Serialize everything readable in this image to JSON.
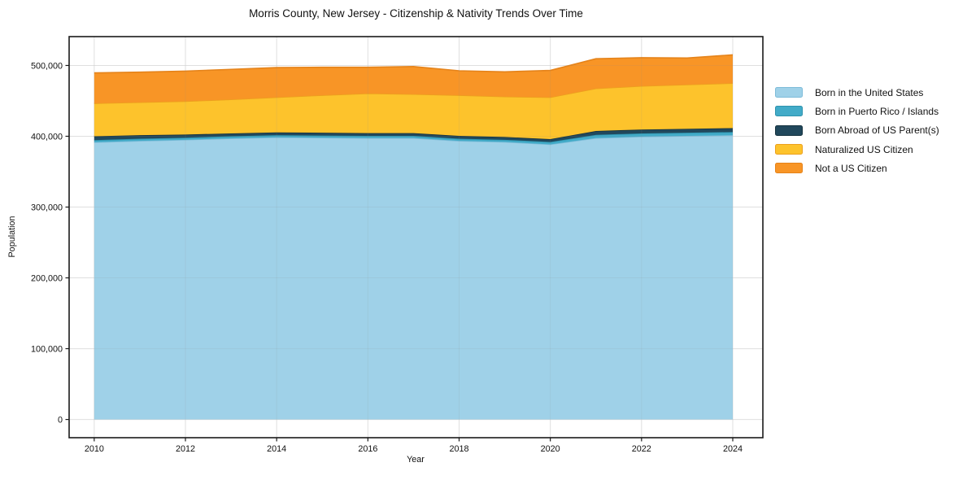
{
  "chart_data": {
    "type": "area",
    "stacked": true,
    "title": "Morris County, New Jersey - Citizenship & Nativity Trends Over Time",
    "xlabel": "Year",
    "ylabel": "Population",
    "x": [
      2010,
      2011,
      2012,
      2013,
      2014,
      2015,
      2016,
      2017,
      2018,
      2019,
      2020,
      2021,
      2022,
      2023,
      2024
    ],
    "series": [
      {
        "name": "Born in the United States",
        "color": "#9fd1e8",
        "edge": "#7ebcd9",
        "values": [
          391500,
          393500,
          395000,
          397000,
          398500,
          398000,
          397500,
          397500,
          393500,
          392000,
          388500,
          397500,
          399500,
          400500,
          401500
        ]
      },
      {
        "name": "Born in Puerto Rico / Islands",
        "color": "#42abc8",
        "edge": "#2e93ae",
        "values": [
          3000,
          3000,
          3000,
          3000,
          3000,
          3000,
          3000,
          3000,
          3000,
          3000,
          3500,
          4500,
          4500,
          4500,
          4500
        ]
      },
      {
        "name": "Born Abroad of US Parent(s)",
        "color": "#21485c",
        "edge": "#16323f",
        "values": [
          5500,
          5000,
          4500,
          4000,
          4000,
          4000,
          4000,
          4000,
          4000,
          4000,
          4000,
          5500,
          5500,
          5500,
          5500
        ]
      },
      {
        "name": "Naturalized US Citizen",
        "color": "#fdc32c",
        "edge": "#eca01d",
        "values": [
          46500,
          46500,
          47000,
          48000,
          49500,
          53000,
          56000,
          55000,
          57500,
          57000,
          59000,
          60000,
          61500,
          62500,
          63500
        ]
      },
      {
        "name": "Not a US Citizen",
        "color": "#f89526",
        "edge": "#e5831a",
        "values": [
          43000,
          42500,
          42500,
          42500,
          42000,
          39500,
          37000,
          39000,
          34500,
          35000,
          38000,
          42000,
          40000,
          37500,
          40000
        ]
      }
    ],
    "xticks": [
      2010,
      2012,
      2014,
      2016,
      2018,
      2020,
      2022,
      2024
    ],
    "yticks": [
      0,
      100000,
      200000,
      300000,
      400000,
      500000
    ],
    "ytick_labels": [
      "0",
      "100,000",
      "200,000",
      "300,000",
      "400,000",
      "500,000"
    ],
    "xlim": [
      2009.45,
      2024.66
    ],
    "ylim": [
      -25750,
      540750
    ],
    "grid": true,
    "legend_position": "right-outside"
  }
}
